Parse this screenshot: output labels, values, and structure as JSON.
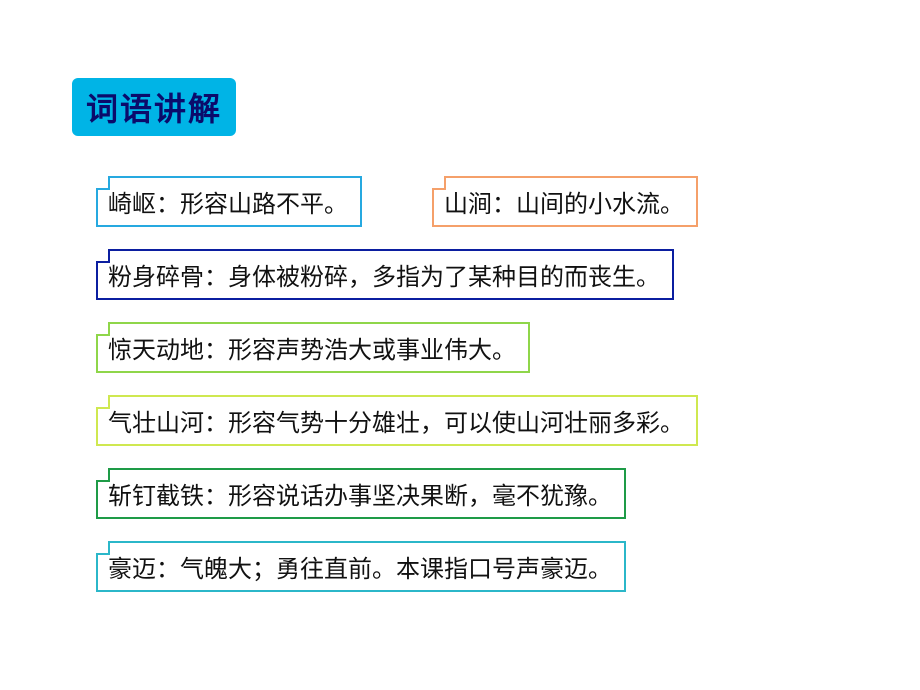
{
  "title": {
    "text": "词语讲解",
    "background_color": "#00b4e6",
    "text_color": "#0b0b6b",
    "fontsize": 32
  },
  "text_color": "#111111",
  "item_fontsize": 24,
  "item_border_width": 2,
  "items": [
    {
      "row": 0,
      "text": "崎岖：形容山路不平。",
      "border_color": "#26a9e0"
    },
    {
      "row": 0,
      "text": "山涧：山间的小水流。",
      "border_color": "#f5a06a"
    },
    {
      "row": 1,
      "text": "粉身碎骨：身体被粉碎，多指为了某种目的而丧生。",
      "border_color": "#0b1ea0"
    },
    {
      "row": 2,
      "text": "惊天动地：形容声势浩大或事业伟大。",
      "border_color": "#8fd64a"
    },
    {
      "row": 3,
      "text": "气壮山河：形容气势十分雄壮，可以使山河壮丽多彩。",
      "border_color": "#cfe850"
    },
    {
      "row": 4,
      "text": "斩钉截铁：形容说话办事坚决果断，毫不犹豫。",
      "border_color": "#1e9b47"
    },
    {
      "row": 5,
      "text": "豪迈：气魄大；勇往直前。本课指口号声豪迈。",
      "border_color": "#2bb7c9"
    }
  ]
}
